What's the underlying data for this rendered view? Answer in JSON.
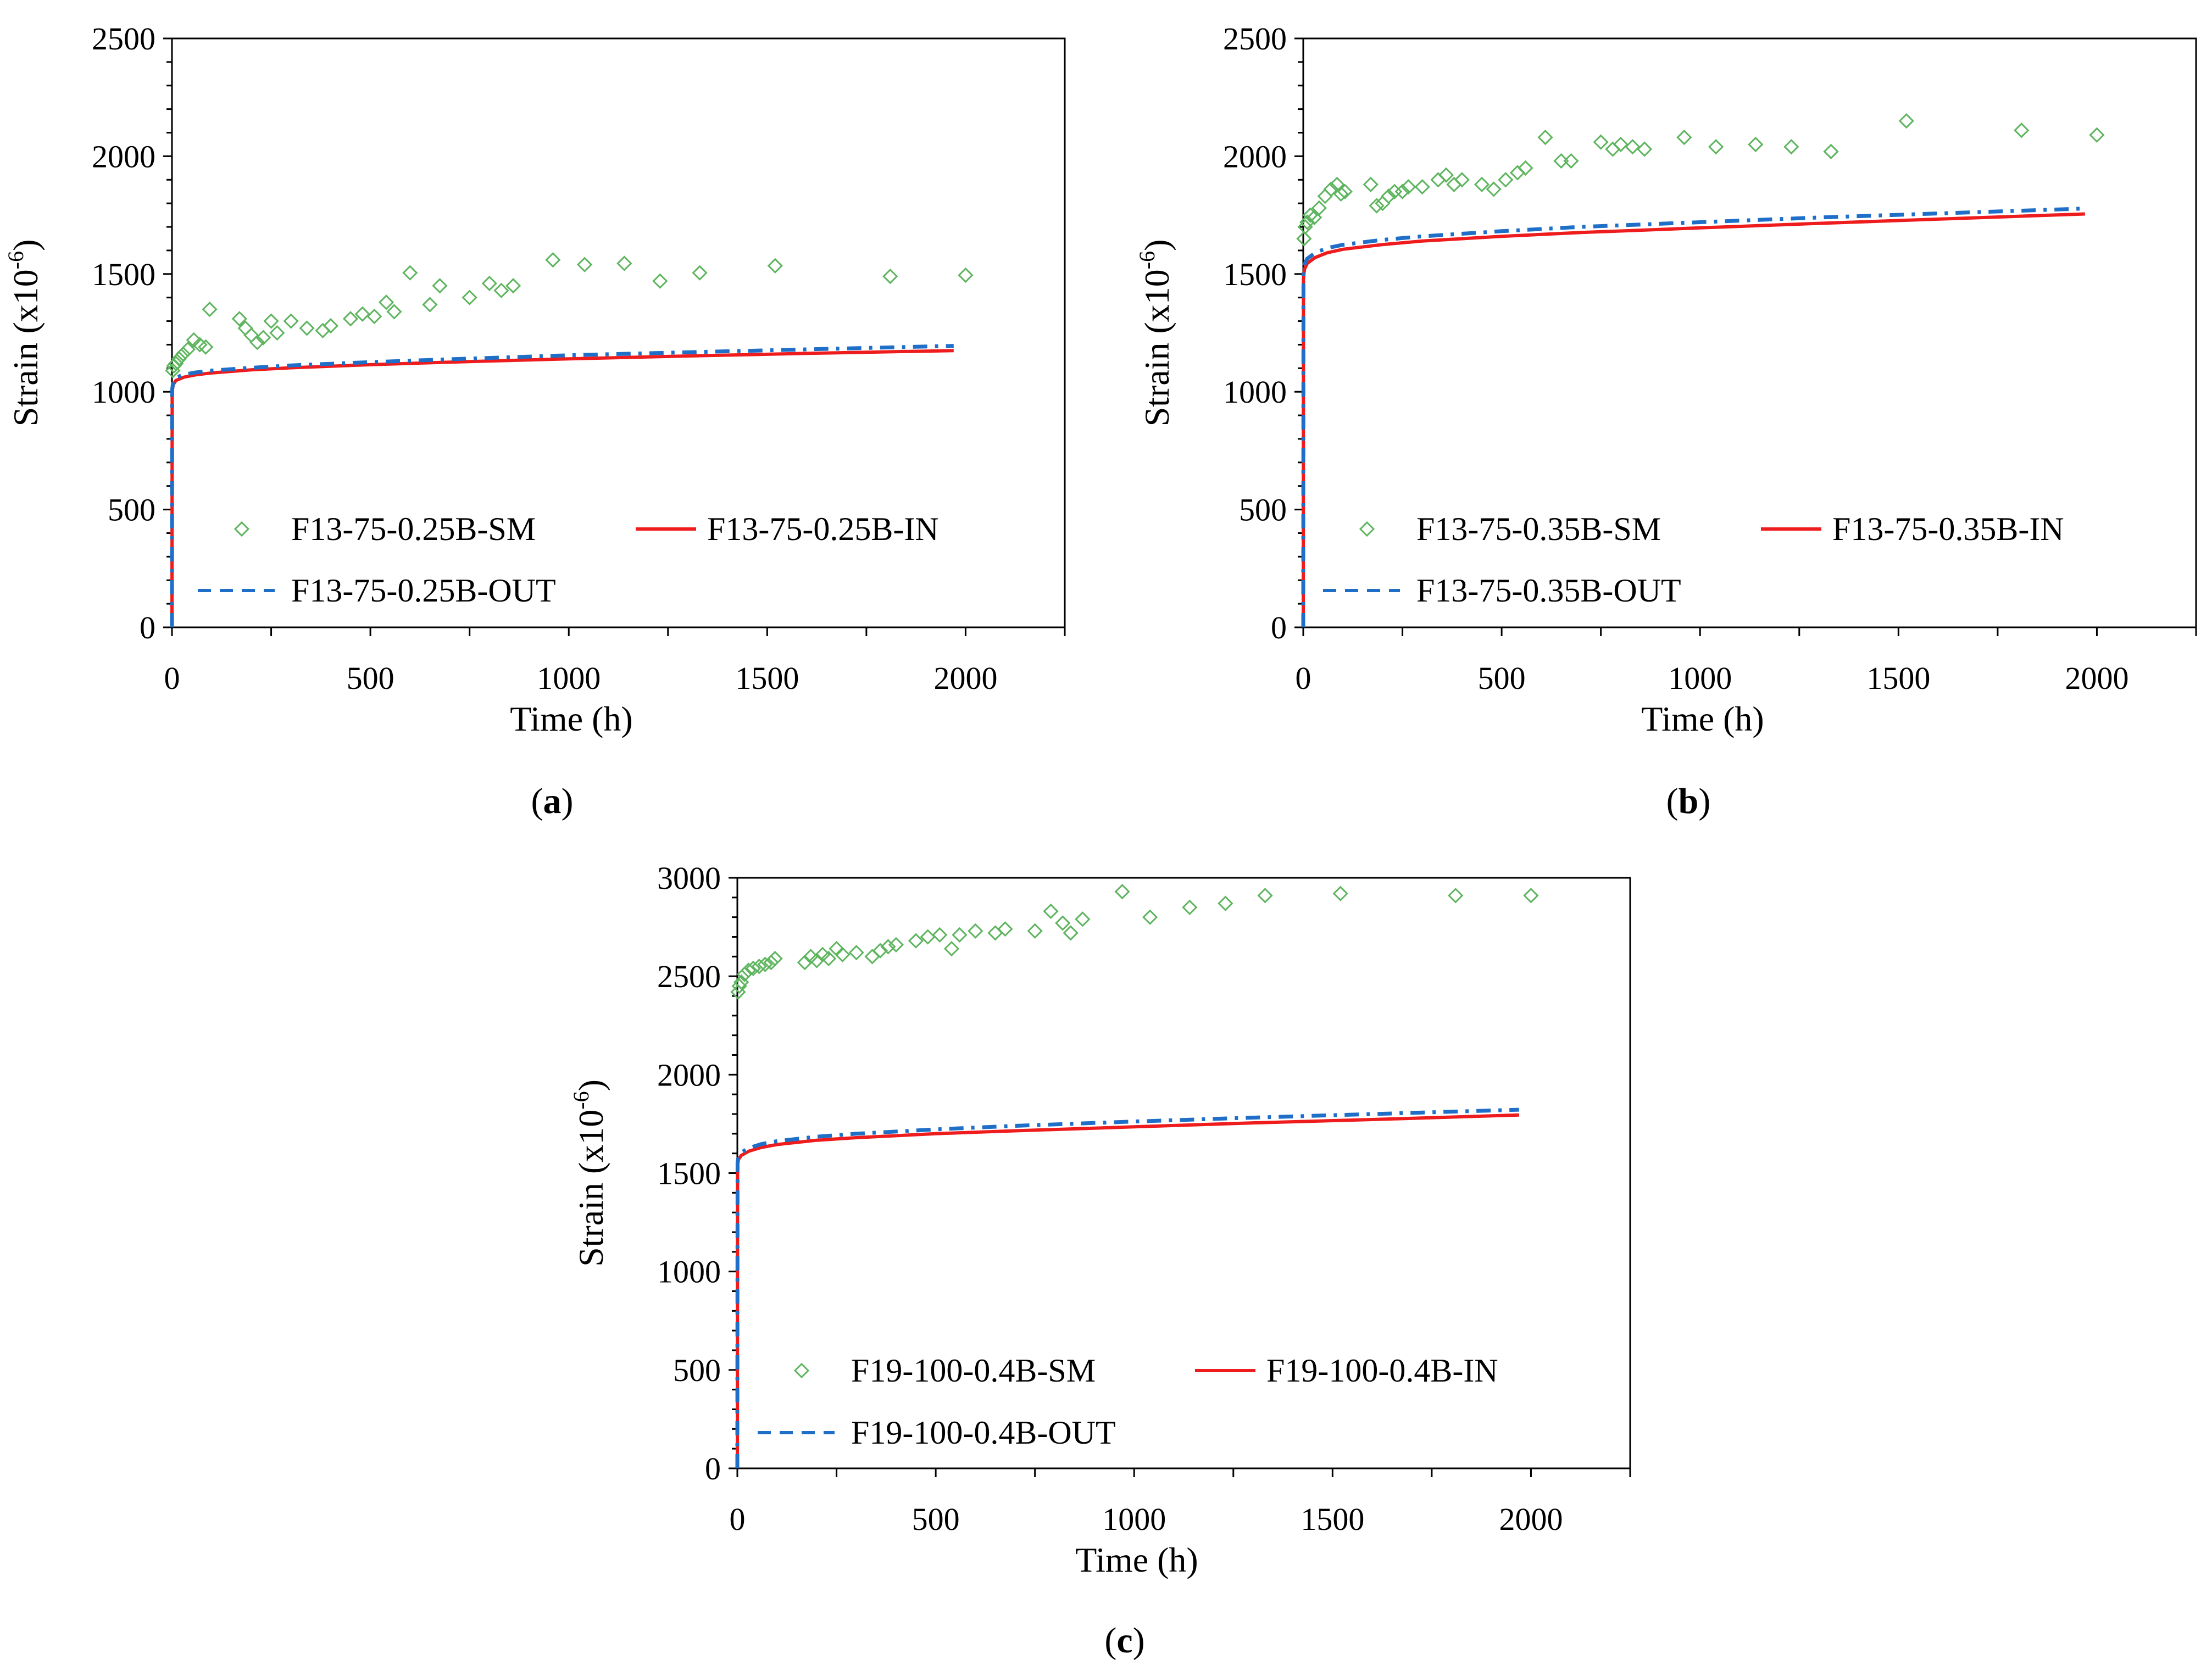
{
  "figure": {
    "panel_labels": [
      "a",
      "b",
      "c"
    ]
  },
  "colors": {
    "sm": "#5fb55f",
    "in": "#ee1c1c",
    "out": "#1f6fc8",
    "axis": "#000000"
  },
  "chart_data": [
    {
      "type": "scatter",
      "panel": "a",
      "xlabel": "Time (h)",
      "ylabel": "Strain",
      "ylabel_unit": "(x10",
      "ylabel_exp": "-6",
      "ylabel_close": ")",
      "xlim": [
        0,
        2250
      ],
      "ylim": [
        0,
        2500
      ],
      "xticks": [
        0,
        500,
        1000,
        1500,
        2000
      ],
      "yticks": [
        0,
        500,
        1000,
        1500,
        2000,
        2500
      ],
      "xtick_labels": [
        "0",
        "500",
        "1000",
        "1500",
        "2000"
      ],
      "ytick_labels": [
        "0",
        "500",
        "1000",
        "1500",
        "2000",
        "2500"
      ],
      "legend": [
        "F13-75-0.25B-SM",
        "F13-75-0.25B-IN",
        "F13-75-0.25B-OUT"
      ],
      "series": [
        {
          "name": "F13-75-0.25B-SM",
          "style": "markers",
          "x": [
            2,
            5,
            10,
            18,
            28,
            40,
            55,
            70,
            85,
            95,
            170,
            185,
            200,
            215,
            230,
            250,
            265,
            300,
            340,
            380,
            400,
            450,
            480,
            510,
            540,
            560,
            600,
            650,
            675,
            750,
            800,
            830,
            860,
            960,
            1040,
            1140,
            1230,
            1330,
            1520,
            1810,
            2000
          ],
          "y": [
            1090,
            1110,
            1120,
            1140,
            1160,
            1180,
            1220,
            1200,
            1190,
            1350,
            1310,
            1270,
            1240,
            1210,
            1230,
            1300,
            1250,
            1300,
            1270,
            1260,
            1280,
            1310,
            1330,
            1320,
            1380,
            1340,
            1505,
            1370,
            1450,
            1400,
            1460,
            1430,
            1450,
            1560,
            1540,
            1545,
            1470,
            1505,
            1535,
            1490,
            1495
          ]
        },
        {
          "name": "F13-75-0.25B-IN",
          "style": "solid",
          "x": [
            0,
            0.5,
            3,
            10,
            30,
            60,
            100,
            200,
            300,
            500,
            700,
            1000,
            1300,
            1600,
            1970
          ],
          "y": [
            0,
            1000,
            1030,
            1048,
            1062,
            1072,
            1080,
            1093,
            1102,
            1115,
            1126,
            1140,
            1152,
            1163,
            1175
          ]
        },
        {
          "name": "F13-75-0.25B-OUT",
          "style": "dashed",
          "x": [
            0,
            0.5,
            3,
            10,
            30,
            60,
            100,
            200,
            300,
            500,
            700,
            1000,
            1300,
            1600,
            1970
          ],
          "y": [
            0,
            1010,
            1042,
            1060,
            1073,
            1082,
            1090,
            1102,
            1112,
            1126,
            1138,
            1155,
            1168,
            1180,
            1195
          ]
        }
      ]
    },
    {
      "type": "scatter",
      "panel": "b",
      "xlabel": "Time (h)",
      "ylabel": "Strain",
      "ylabel_unit": "(x10",
      "ylabel_exp": "-6",
      "ylabel_close": ")",
      "xlim": [
        0,
        2250
      ],
      "ylim": [
        0,
        2500
      ],
      "xticks": [
        0,
        500,
        1000,
        1500,
        2000
      ],
      "yticks": [
        0,
        500,
        1000,
        1500,
        2000,
        2500
      ],
      "xtick_labels": [
        "0",
        "500",
        "1000",
        "1500",
        "2000"
      ],
      "ytick_labels": [
        "0",
        "500",
        "1000",
        "1500",
        "2000",
        "2500"
      ],
      "legend": [
        "F13-75-0.35B-SM",
        "F13-75-0.35B-IN",
        "F13-75-0.35B-OUT"
      ],
      "series": [
        {
          "name": "F13-75-0.35B-SM",
          "style": "markers",
          "x": [
            2,
            5,
            10,
            18,
            28,
            40,
            55,
            70,
            85,
            95,
            105,
            170,
            185,
            200,
            215,
            230,
            250,
            265,
            300,
            340,
            360,
            380,
            400,
            450,
            480,
            510,
            540,
            560,
            610,
            650,
            675,
            750,
            780,
            800,
            830,
            860,
            960,
            1040,
            1140,
            1230,
            1330,
            1520,
            1810,
            2000
          ],
          "y": [
            1650,
            1700,
            1720,
            1750,
            1740,
            1780,
            1830,
            1860,
            1880,
            1840,
            1850,
            1880,
            1790,
            1800,
            1830,
            1850,
            1850,
            1870,
            1870,
            1900,
            1920,
            1880,
            1900,
            1880,
            1860,
            1900,
            1930,
            1950,
            2080,
            1980,
            1980,
            2060,
            2030,
            2050,
            2040,
            2030,
            2080,
            2040,
            2050,
            2040,
            2020,
            2150,
            2110,
            2090
          ]
        },
        {
          "name": "F13-75-0.35B-IN",
          "style": "solid",
          "x": [
            0,
            0.5,
            3,
            10,
            30,
            60,
            100,
            200,
            300,
            500,
            700,
            1000,
            1300,
            1600,
            1970
          ],
          "y": [
            0,
            1480,
            1520,
            1545,
            1570,
            1590,
            1605,
            1625,
            1640,
            1660,
            1676,
            1696,
            1715,
            1733,
            1755
          ]
        },
        {
          "name": "F13-75-0.35B-OUT",
          "style": "dashed",
          "x": [
            0,
            0.5,
            3,
            10,
            30,
            60,
            100,
            200,
            300,
            500,
            700,
            1000,
            1300,
            1600,
            1970
          ],
          "y": [
            0,
            1500,
            1540,
            1565,
            1590,
            1610,
            1624,
            1645,
            1660,
            1682,
            1700,
            1720,
            1740,
            1757,
            1778
          ]
        }
      ]
    },
    {
      "type": "scatter",
      "panel": "c",
      "xlabel": "Time (h)",
      "ylabel": "Strain",
      "ylabel_unit": "(x10",
      "ylabel_exp": "-6",
      "ylabel_close": ")",
      "xlim": [
        0,
        2250
      ],
      "ylim": [
        0,
        3000
      ],
      "xticks": [
        0,
        500,
        1000,
        1500,
        2000
      ],
      "yticks": [
        0,
        500,
        1000,
        1500,
        2000,
        2500,
        3000
      ],
      "xtick_labels": [
        "0",
        "500",
        "1000",
        "1500",
        "2000"
      ],
      "ytick_labels": [
        "0",
        "500",
        "1000",
        "1500",
        "2000",
        "2500",
        "3000"
      ],
      "legend": [
        "F19-100-0.4B-SM",
        "F19-100-0.4B-IN",
        "F19-100-0.4B-OUT"
      ],
      "series": [
        {
          "name": "F19-100-0.4B-SM",
          "style": "markers",
          "x": [
            2,
            5,
            10,
            18,
            28,
            40,
            55,
            70,
            85,
            95,
            170,
            185,
            200,
            215,
            230,
            250,
            265,
            300,
            340,
            360,
            380,
            400,
            450,
            480,
            510,
            540,
            560,
            600,
            650,
            675,
            750,
            790,
            820,
            840,
            870,
            970,
            1040,
            1140,
            1230,
            1330,
            1520,
            1810,
            2000
          ],
          "y": [
            2420,
            2450,
            2470,
            2510,
            2530,
            2540,
            2550,
            2560,
            2570,
            2590,
            2570,
            2600,
            2580,
            2610,
            2590,
            2640,
            2610,
            2620,
            2600,
            2630,
            2650,
            2660,
            2680,
            2700,
            2710,
            2640,
            2710,
            2730,
            2720,
            2740,
            2730,
            2830,
            2770,
            2720,
            2790,
            2930,
            2800,
            2850,
            2870,
            2910,
            2920,
            2910,
            2910
          ]
        },
        {
          "name": "F19-100-0.4B-IN",
          "style": "solid",
          "x": [
            0,
            0.5,
            3,
            10,
            30,
            60,
            100,
            200,
            300,
            500,
            700,
            1000,
            1300,
            1600,
            1970
          ],
          "y": [
            0,
            1540,
            1570,
            1590,
            1612,
            1630,
            1645,
            1667,
            1680,
            1700,
            1715,
            1735,
            1755,
            1772,
            1795
          ]
        },
        {
          "name": "F19-100-0.4B-OUT",
          "style": "dashed",
          "x": [
            0,
            0.5,
            3,
            10,
            30,
            60,
            100,
            200,
            300,
            500,
            700,
            1000,
            1300,
            1600,
            1970
          ],
          "y": [
            0,
            1555,
            1585,
            1605,
            1628,
            1647,
            1662,
            1685,
            1700,
            1722,
            1740,
            1762,
            1782,
            1800,
            1822
          ]
        }
      ]
    }
  ]
}
